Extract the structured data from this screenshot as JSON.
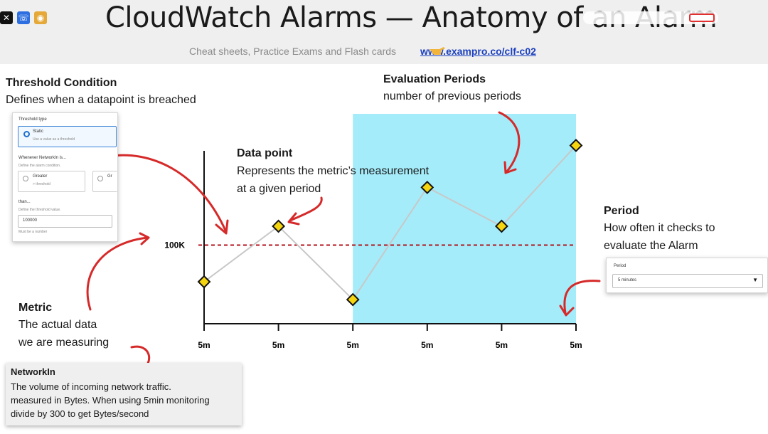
{
  "header": {
    "title": "CloudWatch Alarms — Anatomy of an Alarm",
    "subtitle": "Cheat sheets, Practice Exams and Flash cards",
    "link": "www.exampro.co/clf-c02"
  },
  "labels": {
    "threshold_title": "Threshold Condition",
    "threshold_desc": "Defines when a datapoint is breached",
    "evaluation_title": "Evaluation Periods",
    "evaluation_desc": "number of previous periods",
    "datapoint_title": "Data point",
    "datapoint_desc1": "Represents the metric’s measurement",
    "datapoint_desc2": "at a given period",
    "period_title": "Period",
    "period_desc1": "How often it checks to",
    "period_desc2": "evaluate the Alarm",
    "metric_title": "Metric",
    "metric_desc1": "The actual data",
    "metric_desc2": "we are measuring"
  },
  "threshold_card": {
    "threshold_type_label": "Threshold type",
    "option_static": "Static",
    "option_static_hint": "Use a value as a threshold",
    "whenever_label": "Whenever NetworkIn is...",
    "whenever_hint": "Define the alarm condition.",
    "greater_label": "Greater",
    "greater_hint": "> threshold",
    "greater_eq_label": "Gr",
    "than_label": "than...",
    "than_hint": "Define the threshold value.",
    "value": "100000",
    "must_be": "Must be a number"
  },
  "period_card": {
    "label": "Period",
    "value": "5 minutes"
  },
  "networkin": {
    "title": "NetworkIn",
    "line1": "The volume of incoming network traffic.",
    "line2": "measured in Bytes. When using 5min monitoring",
    "line3": "divide by 300 to get Bytes/second"
  },
  "chart_data": {
    "type": "line",
    "categories": [
      "5m",
      "5m",
      "5m",
      "5m",
      "5m",
      "5m"
    ],
    "threshold_label": "100K",
    "threshold": 100,
    "values": [
      65,
      118,
      48,
      155,
      118,
      195
    ],
    "ylim": [
      25,
      215
    ],
    "evaluation_periods_shaded": [
      2,
      5
    ],
    "colors": {
      "line": "#c8c8c8",
      "marker": "#f5d50f",
      "threshold": "#b3131b",
      "shade": "#a4ecfa",
      "arrow": "#d62a2a"
    }
  }
}
